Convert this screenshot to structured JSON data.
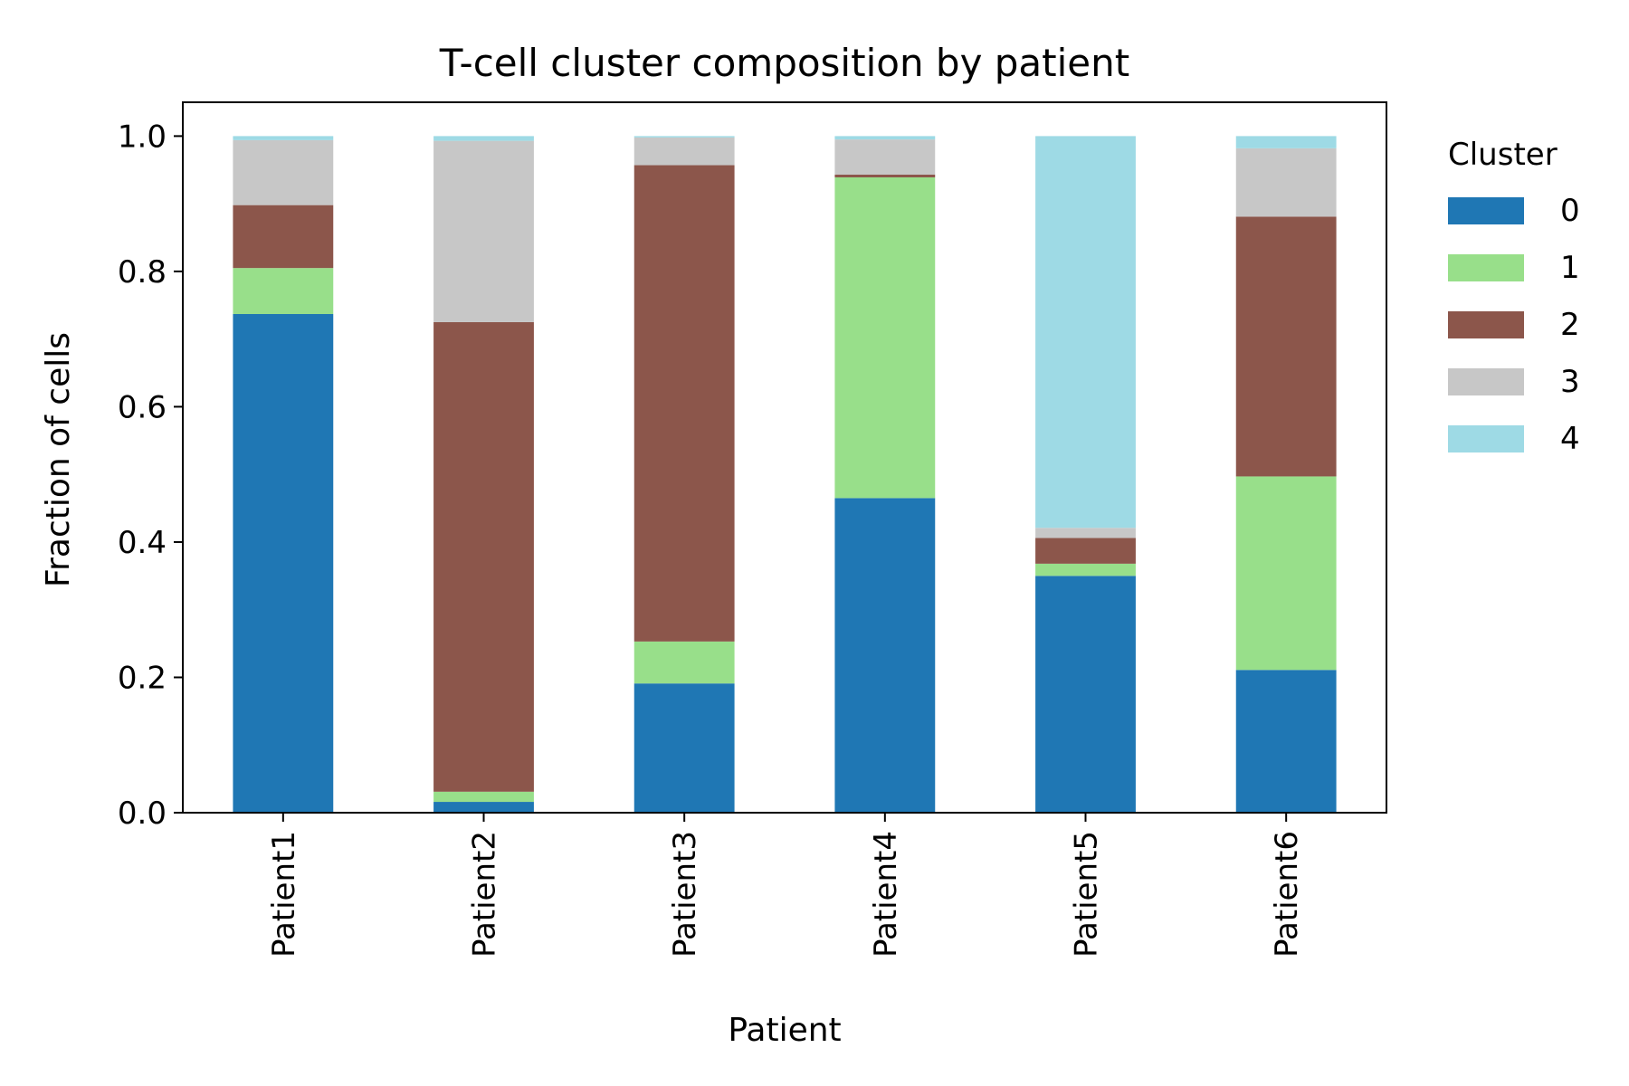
{
  "chart_data": {
    "type": "bar",
    "stacked": true,
    "title": "T-cell cluster composition by patient",
    "xlabel": "Patient",
    "ylabel": "Fraction of cells",
    "ylim": [
      0,
      1.05
    ],
    "yticks": [
      "0.0",
      "0.2",
      "0.4",
      "0.6",
      "0.8",
      "1.0"
    ],
    "categories": [
      "Patient1",
      "Patient2",
      "Patient3",
      "Patient4",
      "Patient5",
      "Patient6"
    ],
    "legend": {
      "title": "Cluster",
      "placement": "outside right"
    },
    "series": [
      {
        "name": "0",
        "color": "#1f77b4",
        "values": [
          0.737,
          0.016,
          0.191,
          0.465,
          0.35,
          0.211
        ]
      },
      {
        "name": "1",
        "color": "#98df8a",
        "values": [
          0.068,
          0.015,
          0.062,
          0.474,
          0.018,
          0.286
        ]
      },
      {
        "name": "2",
        "color": "#8c564b",
        "values": [
          0.093,
          0.694,
          0.704,
          0.004,
          0.038,
          0.384
        ]
      },
      {
        "name": "3",
        "color": "#c7c7c7",
        "values": [
          0.096,
          0.268,
          0.041,
          0.052,
          0.015,
          0.101
        ]
      },
      {
        "name": "4",
        "color": "#9edae5",
        "values": [
          0.006,
          0.007,
          0.002,
          0.005,
          0.579,
          0.018
        ]
      }
    ]
  }
}
